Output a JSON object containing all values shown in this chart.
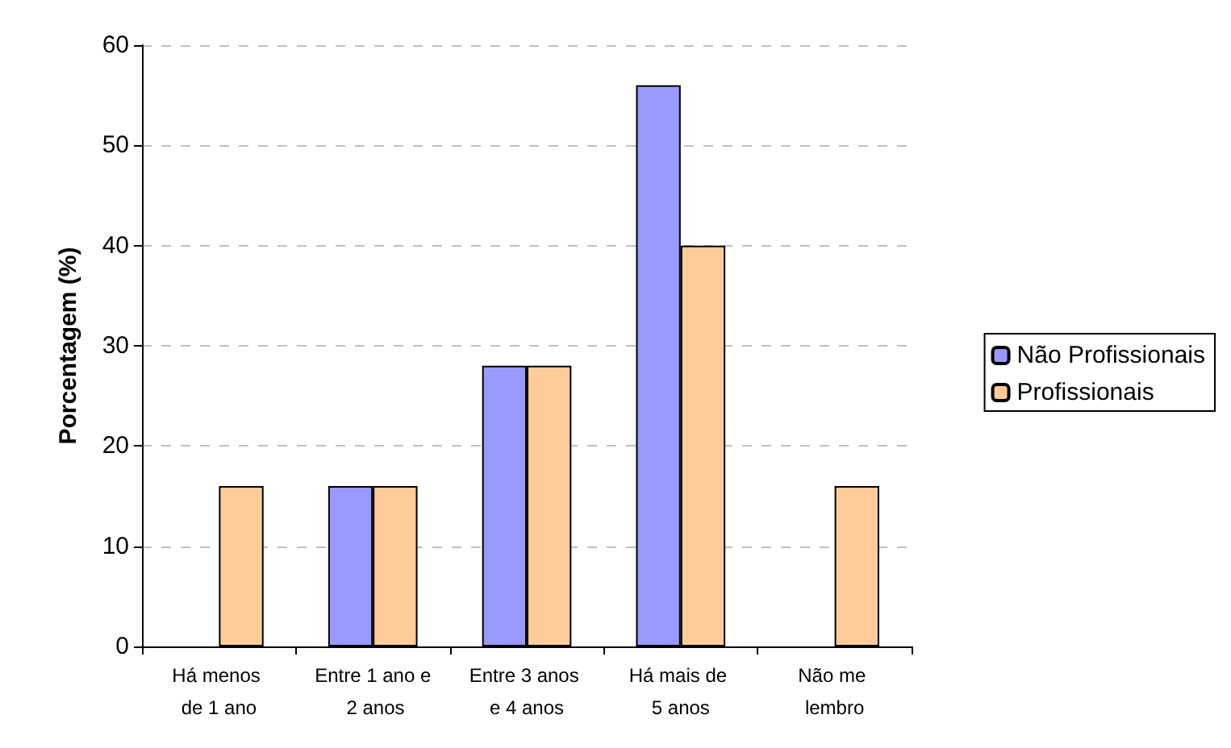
{
  "chart_data": {
    "type": "bar",
    "ylabel": "Porcentagem (%)",
    "categories": [
      "Há menos de 1 ano",
      "Entre 1 ano e 2 anos",
      "Entre 3 anos e 4 anos",
      "Há mais de 5 anos",
      "Não me lembro"
    ],
    "series": [
      {
        "name": "Não Profissionais",
        "color": "#9999ff",
        "values": [
          0,
          16,
          28,
          56,
          0
        ]
      },
      {
        "name": "Profissionais",
        "color": "#ffcc99",
        "values": [
          16,
          16,
          28,
          40,
          16
        ]
      }
    ],
    "ylim": [
      0,
      60
    ],
    "yticks": [
      0,
      10,
      20,
      30,
      40,
      50,
      60
    ],
    "grid": "y",
    "legend": "right"
  }
}
